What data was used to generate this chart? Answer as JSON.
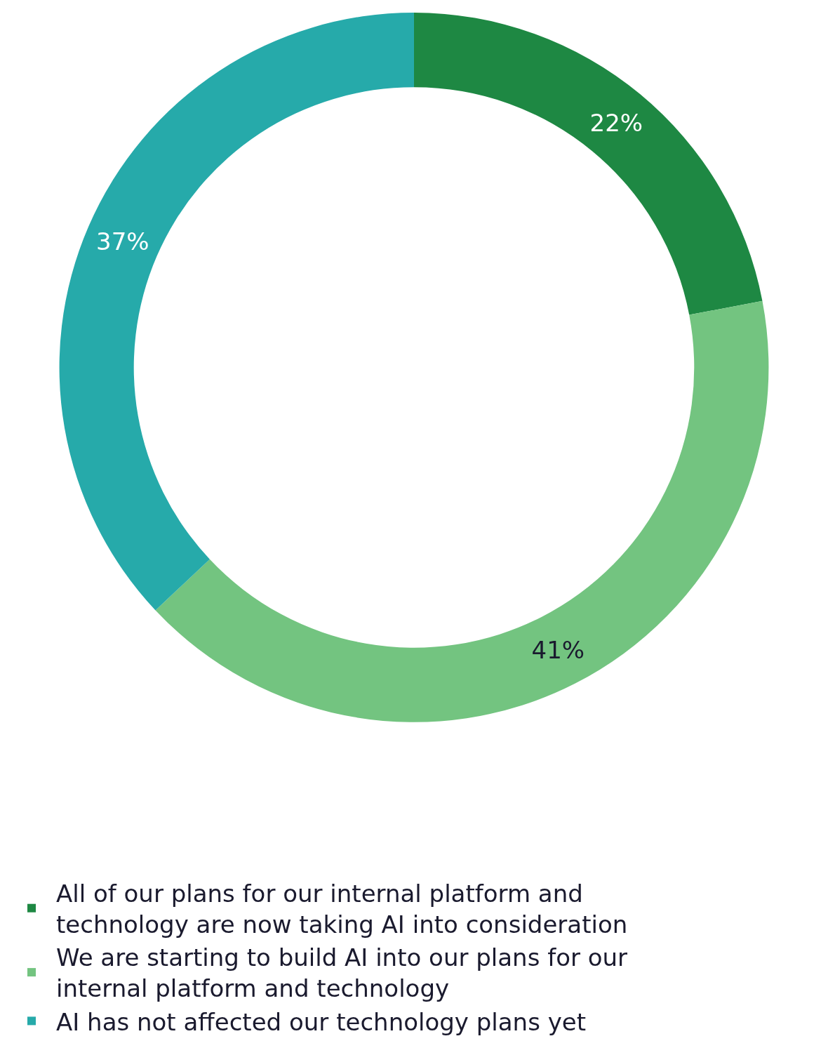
{
  "chart_data": {
    "type": "donut",
    "categories": [
      "All of our plans for our internal platform and technology are now taking AI into consideration",
      "We are starting to build AI into our plans for our internal platform and technology",
      "AI has not affected our technology plans yet"
    ],
    "values": [
      22,
      41,
      37
    ],
    "colors": [
      "#1e8843",
      "#73c480",
      "#26aaaa"
    ],
    "value_labels": [
      "22%",
      "41%",
      "37%"
    ],
    "legend": "bottom"
  }
}
